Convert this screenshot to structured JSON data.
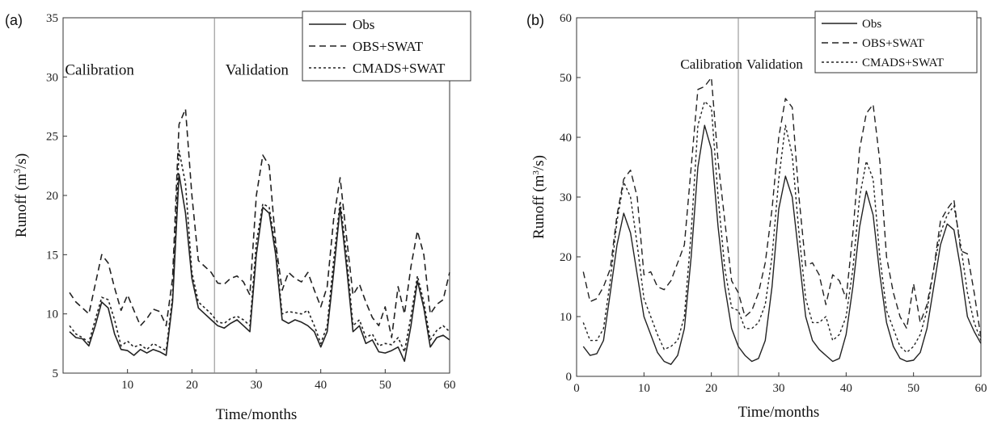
{
  "chart_data": [
    {
      "type": "line",
      "panel_label": "(a)",
      "xlabel": "Time/months",
      "ylabel": "Runoff (m",
      "ylabel_sup": "3",
      "ylabel_end": "/s)",
      "xlim": [
        0,
        60
      ],
      "ylim": [
        5,
        35
      ],
      "xticks": [
        10,
        20,
        30,
        40,
        50,
        60
      ],
      "yticks": [
        5,
        10,
        15,
        20,
        25,
        30,
        35
      ],
      "grid": false,
      "legend_position": "top-right",
      "divider_x": 24,
      "annotations": [
        {
          "text": "Calibration",
          "x": 0.3,
          "y": 30.2,
          "anchor": "start"
        },
        {
          "text": "Validation",
          "x": 25.2,
          "y": 30.2,
          "anchor": "start"
        }
      ],
      "x": [
        1,
        2,
        3,
        4,
        5,
        6,
        7,
        8,
        9,
        10,
        11,
        12,
        13,
        14,
        15,
        16,
        17,
        18,
        19,
        20,
        21,
        22,
        23,
        24,
        25,
        26,
        27,
        28,
        29,
        30,
        31,
        32,
        33,
        34,
        35,
        36,
        37,
        38,
        39,
        40,
        41,
        42,
        43,
        44,
        45,
        46,
        47,
        48,
        49,
        50,
        51,
        52,
        53,
        54,
        55,
        56,
        57,
        58,
        59,
        60
      ],
      "series": [
        {
          "name": "Obs",
          "dash": "solid",
          "values": [
            8.5,
            8.0,
            7.9,
            7.3,
            9.0,
            11.0,
            10.5,
            8.3,
            7.0,
            6.9,
            6.5,
            7.0,
            6.7,
            7.0,
            6.8,
            6.5,
            11.0,
            21.8,
            18.5,
            13.0,
            10.5,
            10.0,
            9.5,
            9.0,
            8.8,
            9.2,
            9.5,
            9.0,
            8.5,
            15.0,
            19.0,
            18.5,
            15.0,
            9.5,
            9.2,
            9.5,
            9.3,
            9.0,
            8.5,
            7.2,
            8.5,
            13.5,
            19.0,
            14.0,
            8.5,
            9.0,
            7.5,
            7.8,
            6.8,
            6.7,
            6.9,
            7.2,
            6.0,
            9.0,
            12.8,
            10.5,
            7.2,
            8.0,
            8.2,
            7.8
          ]
        },
        {
          "name": "OBS+SWAT",
          "dash": "dashed",
          "values": [
            11.8,
            11.0,
            10.5,
            10.0,
            12.5,
            15.0,
            14.3,
            12.2,
            10.3,
            11.6,
            10.3,
            9.0,
            9.6,
            10.4,
            10.2,
            9.0,
            13.0,
            26.0,
            27.3,
            20.0,
            14.5,
            14.0,
            13.5,
            12.6,
            12.5,
            13.0,
            13.2,
            12.7,
            11.6,
            20.0,
            23.4,
            22.5,
            16.0,
            12.0,
            13.5,
            13.0,
            12.7,
            13.5,
            12.0,
            10.6,
            12.3,
            18.0,
            21.5,
            16.5,
            11.6,
            12.5,
            11.0,
            9.7,
            9.0,
            10.6,
            8.0,
            12.3,
            10.0,
            14.0,
            17.0,
            15.0,
            10.0,
            10.8,
            11.2,
            13.5
          ]
        },
        {
          "name": "CMADS+SWAT",
          "dash": "dotted",
          "values": [
            9.0,
            8.3,
            8.0,
            7.6,
            9.5,
            11.4,
            11.2,
            9.5,
            7.3,
            7.7,
            7.2,
            7.4,
            7.0,
            7.5,
            7.2,
            6.9,
            11.5,
            23.8,
            21.0,
            13.5,
            11.0,
            10.5,
            10.0,
            9.3,
            9.2,
            9.6,
            9.8,
            9.5,
            9.0,
            16.0,
            19.3,
            19.0,
            15.5,
            10.0,
            10.2,
            10.1,
            10.0,
            10.3,
            9.0,
            7.5,
            9.0,
            14.5,
            19.5,
            15.0,
            9.0,
            9.5,
            8.0,
            8.3,
            7.3,
            7.5,
            7.4,
            8.0,
            6.8,
            9.8,
            13.2,
            11.0,
            7.8,
            8.6,
            9.0,
            8.5
          ]
        }
      ]
    },
    {
      "type": "line",
      "panel_label": "(b)",
      "xlabel": "Time/months",
      "ylabel": "Runoff (m",
      "ylabel_sup": "3",
      "ylabel_end": "/s)",
      "xlim": [
        0,
        60
      ],
      "ylim": [
        0,
        60
      ],
      "xticks": [
        0,
        10,
        20,
        30,
        40,
        50,
        60
      ],
      "yticks": [
        0,
        10,
        20,
        30,
        40,
        50,
        60
      ],
      "grid": false,
      "legend_position": "top-right",
      "divider_x": 24,
      "annotations": [
        {
          "text": "Calibration",
          "x": 20,
          "y": 51.5,
          "anchor": "middle"
        },
        {
          "text": "Validation",
          "x": 25.2,
          "y": 51.5,
          "anchor": "start"
        }
      ],
      "x": [
        1,
        2,
        3,
        4,
        5,
        6,
        7,
        8,
        9,
        10,
        11,
        12,
        13,
        14,
        15,
        16,
        17,
        18,
        19,
        20,
        21,
        22,
        23,
        24,
        25,
        26,
        27,
        28,
        29,
        30,
        31,
        32,
        33,
        34,
        35,
        36,
        37,
        38,
        39,
        40,
        41,
        42,
        43,
        44,
        45,
        46,
        47,
        48,
        49,
        50,
        51,
        52,
        53,
        54,
        55,
        56,
        57,
        58,
        59,
        60
      ],
      "series": [
        {
          "name": "Obs",
          "dash": "solid",
          "values": [
            5.0,
            3.5,
            3.8,
            6.0,
            14.0,
            22.0,
            27.3,
            24.0,
            17.0,
            10.0,
            7.0,
            4.0,
            2.5,
            2.0,
            3.5,
            8.0,
            20.0,
            35.0,
            42.0,
            38.0,
            25.0,
            15.0,
            8.0,
            5.0,
            3.5,
            2.5,
            3.0,
            6.0,
            15.0,
            28.0,
            33.5,
            30.0,
            20.0,
            10.0,
            6.0,
            4.5,
            3.5,
            2.5,
            3.0,
            7.0,
            15.0,
            25.0,
            31.0,
            27.0,
            17.0,
            9.0,
            5.0,
            3.0,
            2.5,
            2.7,
            4.0,
            8.0,
            15.0,
            22.0,
            25.5,
            24.5,
            18.0,
            10.0,
            7.5,
            5.5
          ]
        },
        {
          "name": "OBS+SWAT",
          "dash": "dashed",
          "values": [
            17.5,
            12.5,
            13.0,
            15.0,
            18.0,
            27.0,
            33.0,
            34.5,
            30.0,
            17.0,
            17.5,
            15.0,
            14.5,
            16.0,
            19.0,
            22.0,
            35.0,
            48.0,
            48.5,
            50.0,
            36.0,
            26.0,
            16.0,
            14.0,
            10.0,
            11.0,
            14.0,
            19.0,
            28.0,
            40.0,
            46.5,
            45.0,
            30.0,
            18.5,
            19.0,
            17.0,
            12.0,
            17.0,
            16.0,
            13.0,
            24.0,
            38.0,
            44.0,
            45.5,
            36.0,
            20.0,
            14.0,
            10.0,
            8.0,
            15.5,
            9.0,
            12.0,
            18.0,
            26.0,
            28.0,
            29.5,
            21.0,
            20.5,
            14.0,
            6.5
          ]
        },
        {
          "name": "CMADS+SWAT",
          "dash": "dotted",
          "values": [
            9.0,
            6.0,
            6.0,
            8.0,
            16.0,
            26.0,
            32.5,
            30.0,
            22.0,
            13.0,
            10.0,
            7.0,
            4.5,
            5.0,
            6.0,
            10.0,
            24.0,
            42.0,
            46.0,
            45.0,
            30.0,
            18.0,
            11.5,
            11.0,
            8.0,
            8.0,
            9.0,
            12.0,
            20.0,
            33.0,
            42.0,
            37.0,
            24.0,
            13.0,
            9.0,
            9.0,
            10.0,
            6.0,
            7.0,
            10.0,
            18.0,
            30.0,
            36.0,
            33.0,
            20.0,
            11.0,
            8.0,
            5.0,
            4.0,
            5.0,
            7.0,
            11.0,
            18.0,
            24.0,
            27.0,
            28.5,
            22.0,
            14.0,
            9.0,
            6.0
          ]
        }
      ]
    }
  ]
}
